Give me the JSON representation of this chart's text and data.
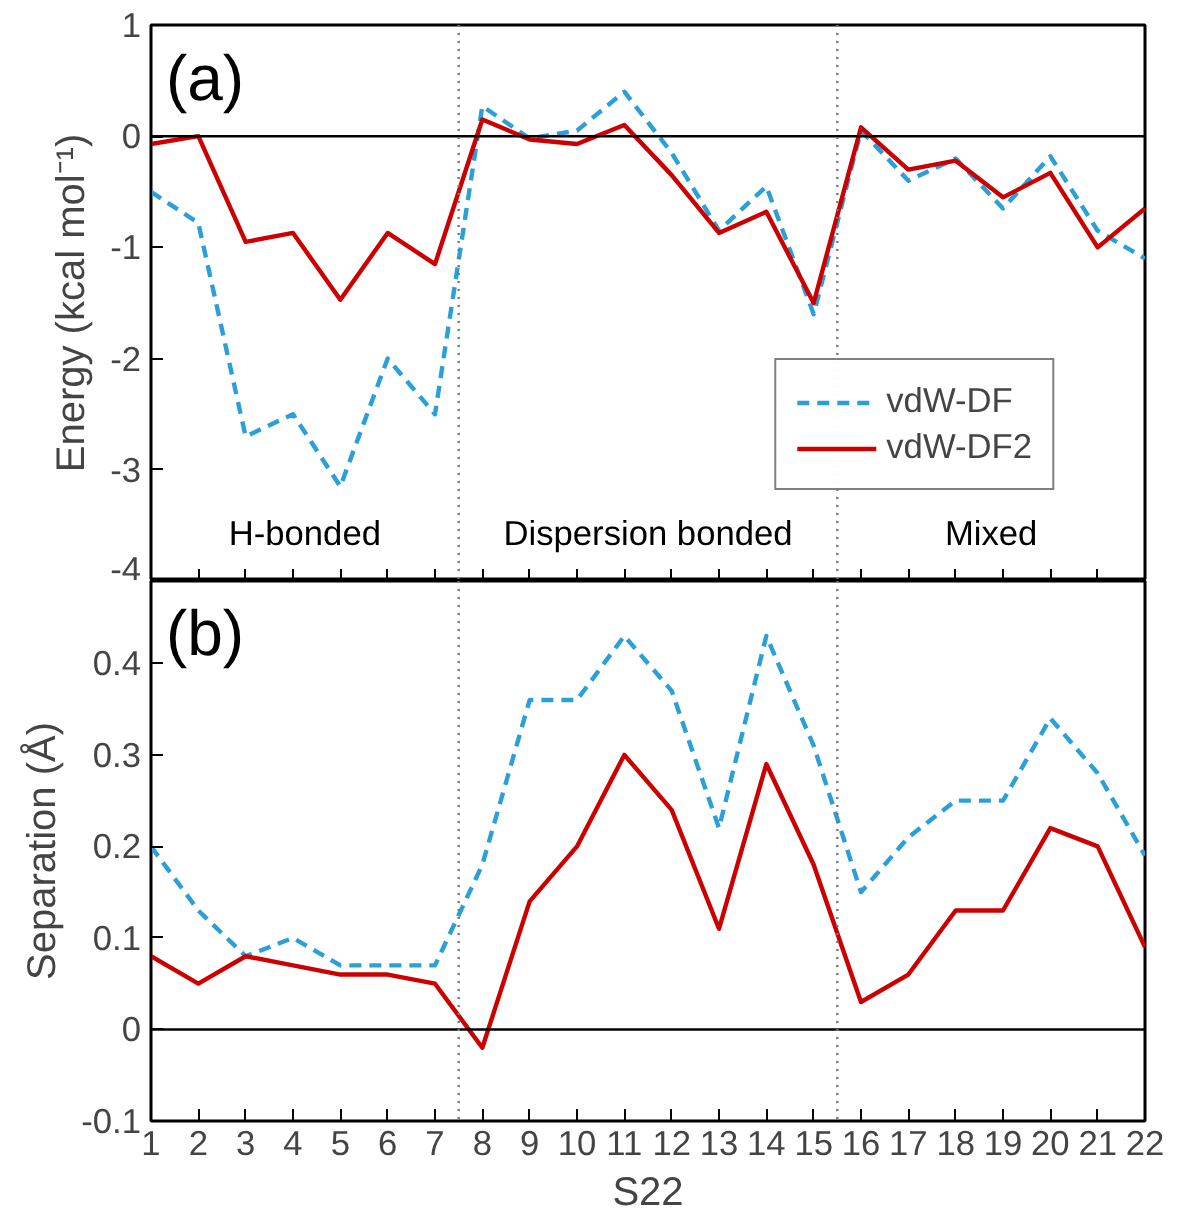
{
  "chart_data": [
    {
      "type": "line",
      "ylabel": "Energy (kcal mol⁻¹)",
      "xlim": [
        1,
        22
      ],
      "xticks": [
        1,
        2,
        3,
        4,
        5,
        6,
        7,
        8,
        9,
        10,
        11,
        12,
        13,
        14,
        15,
        16,
        17,
        18,
        19,
        20,
        21,
        22
      ],
      "ylim": [
        -4,
        1
      ],
      "yticks": [
        -4,
        -3,
        -2,
        -1,
        0,
        1
      ],
      "tick_labels": "y",
      "grid": false,
      "legend": "bottom right",
      "x": [
        1,
        2,
        3,
        4,
        5,
        6,
        7,
        8,
        9,
        10,
        11,
        12,
        13,
        14,
        15,
        16,
        17,
        18,
        19,
        20,
        21,
        22
      ],
      "series": [
        {
          "name": "vdW-DF",
          "color": "#2a9fd8",
          "line_style": "dashed",
          "values": [
            -0.5,
            -0.78,
            -2.7,
            -2.5,
            -3.15,
            -2.0,
            -2.5,
            0.27,
            -0.02,
            0.05,
            0.4,
            -0.15,
            -0.85,
            -0.45,
            -1.6,
            0.05,
            -0.4,
            -0.2,
            -0.65,
            -0.18,
            -0.85,
            -1.1
          ]
        },
        {
          "name": "vdW-DF2",
          "color": "#cc0000",
          "line_style": "solid",
          "values": [
            -0.07,
            0.0,
            -0.95,
            -0.87,
            -1.47,
            -0.87,
            -1.15,
            0.15,
            -0.03,
            -0.07,
            0.1,
            -0.35,
            -0.87,
            -0.68,
            -1.5,
            0.08,
            -0.3,
            -0.22,
            -0.55,
            -0.33,
            -1.0,
            -0.65
          ]
        }
      ],
      "ref_lines": [
        {
          "axis": "y",
          "value": 0,
          "color": "#000000",
          "line_style": "solid"
        },
        {
          "axis": "x",
          "value": 7.5,
          "color": "#777777",
          "line_style": "dotted"
        },
        {
          "axis": "x",
          "value": 15.5,
          "color": "#777777",
          "line_style": "dotted"
        }
      ],
      "annotations": [
        "(a)",
        "H-bonded",
        "Dispersion bonded",
        "Mixed"
      ]
    },
    {
      "type": "line",
      "xlabel": "S22",
      "ylabel": "Separation (Å)",
      "xlim": [
        1,
        22
      ],
      "xticks": [
        1,
        2,
        3,
        4,
        5,
        6,
        7,
        8,
        9,
        10,
        11,
        12,
        13,
        14,
        15,
        16,
        17,
        18,
        19,
        20,
        21,
        22
      ],
      "ylim": [
        -0.1,
        0.49
      ],
      "yticks": [
        -0.1,
        0,
        0.1,
        0.2,
        0.3,
        0.4
      ],
      "grid": false,
      "x": [
        1,
        2,
        3,
        4,
        5,
        6,
        7,
        8,
        9,
        10,
        11,
        12,
        13,
        14,
        15,
        16,
        17,
        18,
        19,
        20,
        21,
        22
      ],
      "series": [
        {
          "color": "#2a9fd8",
          "line_style": "dashed",
          "values": [
            0.2,
            0.13,
            0.08,
            0.1,
            0.07,
            0.07,
            0.07,
            0.18,
            0.36,
            0.36,
            0.43,
            0.37,
            0.22,
            0.43,
            0.31,
            0.15,
            0.21,
            0.25,
            0.25,
            0.34,
            0.28,
            0.19
          ]
        },
        {
          "color": "#cc0000",
          "line_style": "solid",
          "values": [
            0.08,
            0.05,
            0.08,
            0.07,
            0.06,
            0.06,
            0.05,
            -0.02,
            0.14,
            0.2,
            0.3,
            0.24,
            0.11,
            0.29,
            0.18,
            0.03,
            0.06,
            0.13,
            0.13,
            0.22,
            0.2,
            0.09
          ]
        }
      ],
      "ref_lines": [
        {
          "axis": "y",
          "value": 0,
          "color": "#000000",
          "line_style": "solid"
        },
        {
          "axis": "x",
          "value": 7.5,
          "color": "#777777",
          "line_style": "dotted"
        },
        {
          "axis": "x",
          "value": 15.5,
          "color": "#777777",
          "line_style": "dotted"
        }
      ],
      "annotations": [
        "(b)"
      ]
    }
  ]
}
